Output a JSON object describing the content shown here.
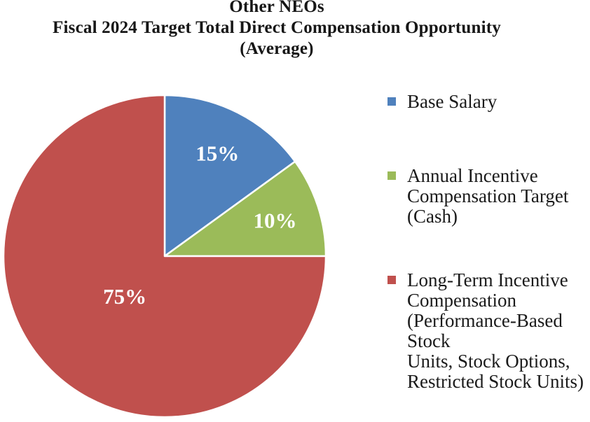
{
  "title": {
    "line1": "Other NEOs",
    "line2": "Fiscal 2024 Target Total Direct Compensation Opportunity",
    "line3": "(Average)"
  },
  "legend": {
    "items": [
      {
        "label": "Base Salary",
        "color": "#4f81bd"
      },
      {
        "label": "Annual Incentive\nCompensation Target\n(Cash)",
        "color": "#9bbb59"
      },
      {
        "label": "Long-Term Incentive\nCompensation\n(Performance-Based Stock\nUnits, Stock Options,\nRestricted Stock Units)",
        "color": "#c0504d"
      }
    ]
  },
  "chart_data": {
    "type": "pie",
    "title": "Other NEOs Fiscal 2024 Target Total Direct Compensation Opportunity (Average)",
    "labels": [
      "Base Salary",
      "Annual Incentive Compensation Target (Cash)",
      "Long-Term Incentive Compensation (Performance-Based Stock Units, Stock Options, Restricted Stock Units)"
    ],
    "values": [
      15,
      10,
      75
    ],
    "unit": "%",
    "slice_labels": [
      "15%",
      "10%",
      "75%"
    ],
    "colors": [
      "#4f81bd",
      "#9bbb59",
      "#c0504d"
    ],
    "slice_label_color": "#ffffff",
    "slice_border_color": "#ffffff",
    "start_angle_deg": 0,
    "direction": "clockwise",
    "legend_position": "right"
  }
}
